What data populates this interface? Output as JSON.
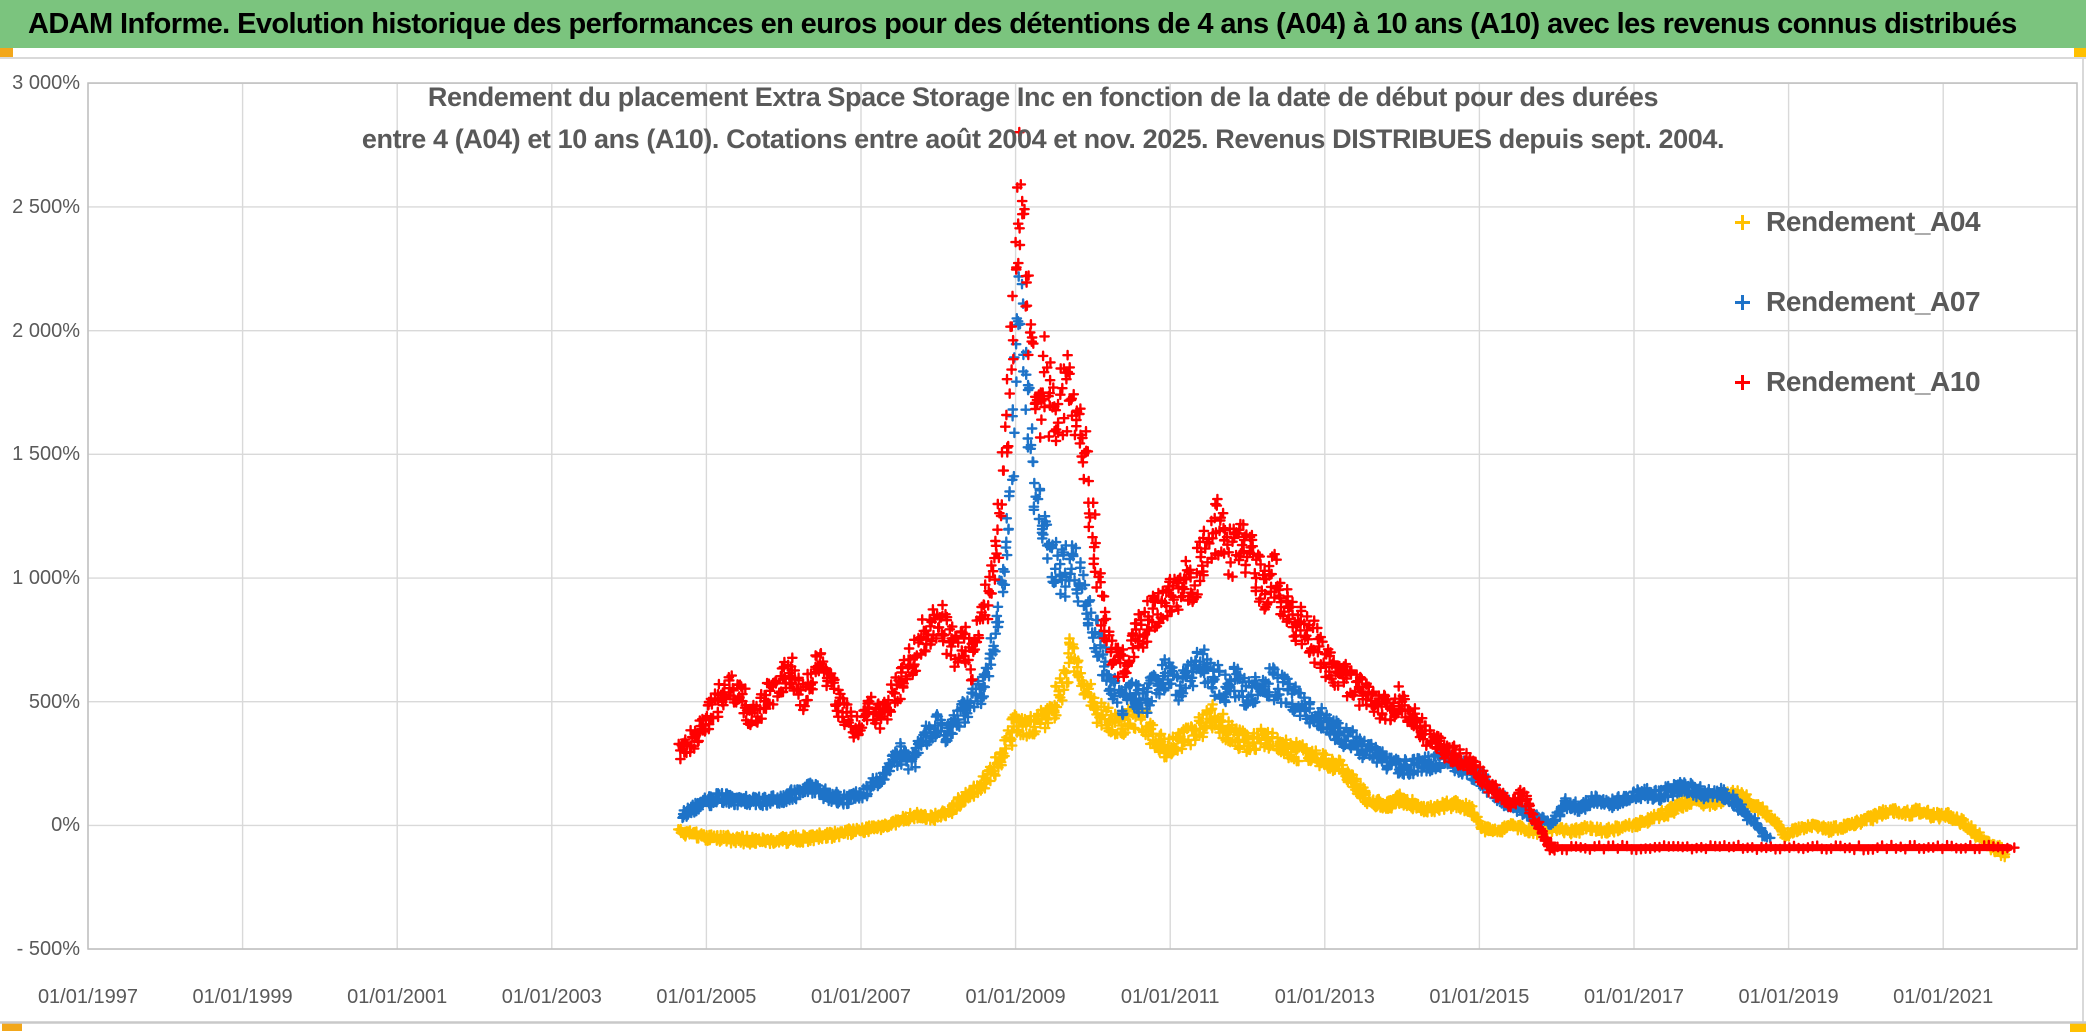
{
  "banner": {
    "text": "ADAM Informe. Evolution historique des performances en euros pour des détentions de 4 ans (A04) à 10 ans (A10) avec les revenus connus distribués",
    "background_color": "#7BC47E"
  },
  "chart": {
    "title_line1": "Rendement du placement Extra Space Storage Inc en fonction de la date de début pour des durées",
    "title_line2": "entre 4 (A04) et 10 ans (A10). Cotations entre août 2004 et nov. 2025. Revenus DISTRIBUES depuis sept. 2004.",
    "legend": {
      "items": [
        {
          "label": "Rendement_A04",
          "color": "#FFC000"
        },
        {
          "label": "Rendement_A07",
          "color": "#1E73C8"
        },
        {
          "label": "Rendement_A10",
          "color": "#FF0000"
        }
      ]
    }
  },
  "colors": {
    "gridline": "#D9D9D9",
    "plot_border": "#BFBFBF",
    "frame": "#D9D9D9",
    "bottom_rule": "#C9C9C9",
    "text": "#595959",
    "corner_marks": "#FFC000"
  },
  "chart_data": {
    "type": "scatter",
    "marker": "plus",
    "title": "Rendement du placement Extra Space Storage Inc en fonction de la date de début pour des durées entre 4 (A04) et 10 ans (A10). Cotations entre août 2004 et nov. 2025. Revenus DISTRIBUES depuis sept. 2004.",
    "x_axis": {
      "tick_labels": [
        "01/01/1997",
        "01/01/1999",
        "01/01/2001",
        "01/01/2003",
        "01/01/2005",
        "01/01/2007",
        "01/01/2009",
        "01/01/2011",
        "01/01/2013",
        "01/01/2015",
        "01/01/2017",
        "01/01/2019",
        "01/01/2021"
      ],
      "start_year": 1997,
      "tick_step_years": 2,
      "plot_end_year": 2022.7,
      "grid": true
    },
    "y_axis": {
      "tick_labels": [
        "3 000%",
        "2 500%",
        "2 000%",
        "1 500%",
        "1 000%",
        "500%",
        "0%",
        "- 500%"
      ],
      "min_pct": -500,
      "max_pct": 3000,
      "step_pct": 500,
      "unit": "%",
      "grid": true
    },
    "legend_position": "right",
    "series": [
      {
        "name": "Rendement_A04",
        "color": "#FFC000",
        "points": [
          [
            2004.66,
            -25
          ],
          [
            2004.9,
            -40
          ],
          [
            2005.1,
            -50
          ],
          [
            2005.4,
            -58
          ],
          [
            2005.7,
            -62
          ],
          [
            2006.0,
            -58
          ],
          [
            2006.3,
            -52
          ],
          [
            2006.6,
            -40
          ],
          [
            2006.9,
            -22
          ],
          [
            2007.2,
            -10
          ],
          [
            2007.45,
            12
          ],
          [
            2007.7,
            40
          ],
          [
            2007.9,
            28
          ],
          [
            2008.1,
            48
          ],
          [
            2008.3,
            100
          ],
          [
            2008.5,
            145
          ],
          [
            2008.7,
            215
          ],
          [
            2008.85,
            285
          ],
          [
            2009.0,
            420
          ],
          [
            2009.15,
            385
          ],
          [
            2009.3,
            425
          ],
          [
            2009.45,
            445
          ],
          [
            2009.6,
            565
          ],
          [
            2009.72,
            705
          ],
          [
            2009.82,
            650
          ],
          [
            2009.92,
            545
          ],
          [
            2010.05,
            470
          ],
          [
            2010.2,
            425
          ],
          [
            2010.35,
            400
          ],
          [
            2010.5,
            445
          ],
          [
            2010.65,
            430
          ],
          [
            2010.8,
            350
          ],
          [
            2010.95,
            312
          ],
          [
            2011.1,
            335
          ],
          [
            2011.25,
            365
          ],
          [
            2011.4,
            405
          ],
          [
            2011.55,
            445
          ],
          [
            2011.7,
            400
          ],
          [
            2011.85,
            362
          ],
          [
            2012.0,
            332
          ],
          [
            2012.2,
            355
          ],
          [
            2012.4,
            330
          ],
          [
            2012.6,
            302
          ],
          [
            2012.8,
            282
          ],
          [
            2013.0,
            262
          ],
          [
            2013.2,
            232
          ],
          [
            2013.4,
            162
          ],
          [
            2013.6,
            95
          ],
          [
            2013.8,
            82
          ],
          [
            2013.95,
            108
          ],
          [
            2014.1,
            92
          ],
          [
            2014.3,
            62
          ],
          [
            2014.5,
            78
          ],
          [
            2014.7,
            88
          ],
          [
            2014.9,
            62
          ],
          [
            2015.05,
            -15
          ],
          [
            2015.25,
            -28
          ],
          [
            2015.4,
            2
          ],
          [
            2015.55,
            -12
          ],
          [
            2015.7,
            -28
          ],
          [
            2015.85,
            -22
          ],
          [
            2016.0,
            -12
          ],
          [
            2016.2,
            -28
          ],
          [
            2016.4,
            -8
          ],
          [
            2016.6,
            -22
          ],
          [
            2016.8,
            -12
          ],
          [
            2017.0,
            2
          ],
          [
            2017.2,
            22
          ],
          [
            2017.4,
            48
          ],
          [
            2017.6,
            82
          ],
          [
            2017.78,
            108
          ],
          [
            2017.95,
            88
          ],
          [
            2018.15,
            112
          ],
          [
            2018.35,
            132
          ],
          [
            2018.5,
            92
          ],
          [
            2018.65,
            62
          ],
          [
            2018.8,
            22
          ],
          [
            2018.95,
            -38
          ],
          [
            2019.1,
            -18
          ],
          [
            2019.3,
            2
          ],
          [
            2019.5,
            -18
          ],
          [
            2019.7,
            -8
          ],
          [
            2019.9,
            12
          ],
          [
            2020.1,
            32
          ],
          [
            2020.3,
            62
          ],
          [
            2020.5,
            48
          ],
          [
            2020.7,
            58
          ],
          [
            2020.9,
            38
          ],
          [
            2021.05,
            42
          ],
          [
            2021.2,
            25
          ],
          [
            2021.35,
            -15
          ],
          [
            2021.5,
            -55
          ],
          [
            2021.65,
            -90
          ],
          [
            2021.8,
            -110
          ]
        ]
      },
      {
        "name": "Rendement_A07",
        "color": "#1E73C8",
        "points": [
          [
            2004.68,
            40
          ],
          [
            2004.9,
            80
          ],
          [
            2005.2,
            115
          ],
          [
            2005.4,
            95
          ],
          [
            2005.6,
            105
          ],
          [
            2005.8,
            95
          ],
          [
            2006.0,
            112
          ],
          [
            2006.2,
            135
          ],
          [
            2006.4,
            155
          ],
          [
            2006.6,
            118
          ],
          [
            2006.8,
            105
          ],
          [
            2007.0,
            122
          ],
          [
            2007.2,
            175
          ],
          [
            2007.35,
            230
          ],
          [
            2007.5,
            295
          ],
          [
            2007.65,
            248
          ],
          [
            2007.8,
            350
          ],
          [
            2008.0,
            405
          ],
          [
            2008.12,
            355
          ],
          [
            2008.3,
            455
          ],
          [
            2008.5,
            525
          ],
          [
            2008.68,
            640
          ],
          [
            2008.82,
            950
          ],
          [
            2008.95,
            1380
          ],
          [
            2009.05,
            2230
          ],
          [
            2009.12,
            1850
          ],
          [
            2009.22,
            1500
          ],
          [
            2009.32,
            1280
          ],
          [
            2009.45,
            1120
          ],
          [
            2009.6,
            1020
          ],
          [
            2009.75,
            1060
          ],
          [
            2009.9,
            910
          ],
          [
            2010.05,
            760
          ],
          [
            2010.2,
            610
          ],
          [
            2010.35,
            490
          ],
          [
            2010.5,
            540
          ],
          [
            2010.65,
            495
          ],
          [
            2010.8,
            565
          ],
          [
            2010.95,
            625
          ],
          [
            2011.1,
            565
          ],
          [
            2011.25,
            605
          ],
          [
            2011.4,
            655
          ],
          [
            2011.55,
            605
          ],
          [
            2011.7,
            552
          ],
          [
            2011.85,
            585
          ],
          [
            2012.0,
            522
          ],
          [
            2012.15,
            558
          ],
          [
            2012.3,
            582
          ],
          [
            2012.45,
            548
          ],
          [
            2012.6,
            505
          ],
          [
            2012.75,
            472
          ],
          [
            2012.9,
            442
          ],
          [
            2013.05,
            405
          ],
          [
            2013.2,
            372
          ],
          [
            2013.4,
            332
          ],
          [
            2013.6,
            292
          ],
          [
            2013.8,
            252
          ],
          [
            2014.0,
            232
          ],
          [
            2014.2,
            242
          ],
          [
            2014.4,
            252
          ],
          [
            2014.6,
            262
          ],
          [
            2014.8,
            235
          ],
          [
            2015.0,
            192
          ],
          [
            2015.2,
            125
          ],
          [
            2015.35,
            95
          ],
          [
            2015.5,
            62
          ],
          [
            2015.65,
            38
          ],
          [
            2015.8,
            22
          ],
          [
            2015.95,
            10
          ],
          [
            2016.1,
            90
          ],
          [
            2016.3,
            70
          ],
          [
            2016.5,
            105
          ],
          [
            2016.7,
            85
          ],
          [
            2016.9,
            110
          ],
          [
            2017.1,
            130
          ],
          [
            2017.3,
            120
          ],
          [
            2017.5,
            145
          ],
          [
            2017.65,
            160
          ],
          [
            2017.8,
            140
          ],
          [
            2017.95,
            125
          ],
          [
            2018.1,
            135
          ],
          [
            2018.25,
            110
          ],
          [
            2018.4,
            60
          ],
          [
            2018.55,
            15
          ],
          [
            2018.65,
            -25
          ],
          [
            2018.75,
            -55
          ]
        ]
      },
      {
        "name": "Rendement_A10",
        "color": "#FF0000",
        "points": [
          [
            2004.65,
            300
          ],
          [
            2004.8,
            340
          ],
          [
            2005.0,
            420
          ],
          [
            2005.15,
            505
          ],
          [
            2005.3,
            570
          ],
          [
            2005.45,
            525
          ],
          [
            2005.6,
            425
          ],
          [
            2005.75,
            500
          ],
          [
            2005.9,
            570
          ],
          [
            2006.1,
            635
          ],
          [
            2006.25,
            522
          ],
          [
            2006.42,
            660
          ],
          [
            2006.58,
            615
          ],
          [
            2006.75,
            468
          ],
          [
            2006.95,
            392
          ],
          [
            2007.1,
            485
          ],
          [
            2007.25,
            432
          ],
          [
            2007.45,
            552
          ],
          [
            2007.6,
            632
          ],
          [
            2007.85,
            780
          ],
          [
            2008.05,
            825
          ],
          [
            2008.2,
            712
          ],
          [
            2008.32,
            752
          ],
          [
            2008.45,
            655
          ],
          [
            2008.6,
            900
          ],
          [
            2008.72,
            1000
          ],
          [
            2008.85,
            1480
          ],
          [
            2008.95,
            1950
          ],
          [
            2009.05,
            2600
          ],
          [
            2009.12,
            2320
          ],
          [
            2009.2,
            1920
          ],
          [
            2009.3,
            1700
          ],
          [
            2009.4,
            1820
          ],
          [
            2009.5,
            1600
          ],
          [
            2009.65,
            1760
          ],
          [
            2009.8,
            1640
          ],
          [
            2009.95,
            1340
          ],
          [
            2010.1,
            900
          ],
          [
            2010.25,
            700
          ],
          [
            2010.4,
            640
          ],
          [
            2010.55,
            750
          ],
          [
            2010.7,
            820
          ],
          [
            2010.85,
            880
          ],
          [
            2011.0,
            905
          ],
          [
            2011.15,
            1005
          ],
          [
            2011.3,
            950
          ],
          [
            2011.45,
            1105
          ],
          [
            2011.6,
            1225
          ],
          [
            2011.72,
            1150
          ],
          [
            2011.82,
            1100
          ],
          [
            2011.92,
            1185
          ],
          [
            2012.05,
            1080
          ],
          [
            2012.2,
            950
          ],
          [
            2012.35,
            1005
          ],
          [
            2012.5,
            870
          ],
          [
            2012.7,
            800
          ],
          [
            2012.85,
            752
          ],
          [
            2013.0,
            682
          ],
          [
            2013.15,
            622
          ],
          [
            2013.3,
            572
          ],
          [
            2013.5,
            532
          ],
          [
            2013.7,
            482
          ],
          [
            2013.85,
            472
          ],
          [
            2013.97,
            508
          ],
          [
            2014.1,
            452
          ],
          [
            2014.3,
            372
          ],
          [
            2014.5,
            322
          ],
          [
            2014.7,
            282
          ],
          [
            2014.9,
            248
          ],
          [
            2015.1,
            165
          ],
          [
            2015.25,
            122
          ],
          [
            2015.4,
            88
          ],
          [
            2015.55,
            128
          ],
          [
            2015.7,
            35
          ],
          [
            2015.85,
            -55
          ],
          [
            2015.95,
            -90
          ]
        ],
        "flat_segment": {
          "from_year": 2015.95,
          "to_year": 2021.86,
          "value_pct": -90
        }
      }
    ]
  }
}
